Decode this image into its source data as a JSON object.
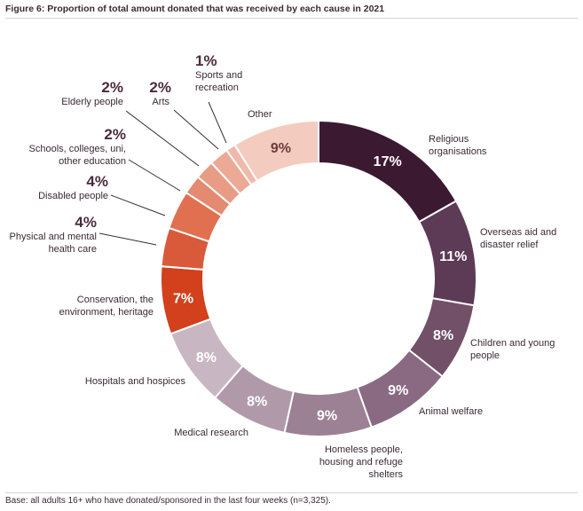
{
  "figure": {
    "title": "Figure 6: Proportion of total amount donated that was received by each cause in 2021",
    "base_note": "Base: all adults 16+ who have donated/sponsored in the last four weeks (n=3,325)."
  },
  "chart_data": {
    "type": "pie",
    "unit": "%",
    "slices": [
      {
        "label": "Religious organisations",
        "value": 17,
        "display": "17%",
        "color": "#3b1a31",
        "text_color": "#ffffff"
      },
      {
        "label": "Overseas aid and disaster relief",
        "value": 11,
        "display": "11%",
        "color": "#5d3a55",
        "text_color": "#ffffff"
      },
      {
        "label": "Children and young people",
        "value": 8,
        "display": "8%",
        "color": "#715068",
        "text_color": "#ffffff"
      },
      {
        "label": "Animal welfare",
        "value": 9,
        "display": "9%",
        "color": "#8a6a82",
        "text_color": "#ffffff"
      },
      {
        "label": "Homeless people, housing and refuge shelters",
        "value": 9,
        "display": "9%",
        "color": "#9c8094",
        "text_color": "#ffffff"
      },
      {
        "label": "Medical research",
        "value": 8,
        "display": "8%",
        "color": "#b09aa9",
        "text_color": "#ffffff"
      },
      {
        "label": "Hospitals and hospices",
        "value": 8,
        "display": "8%",
        "color": "#c8b7c2",
        "text_color": "#ffffff"
      },
      {
        "label": "Conservation, the environment, heritage",
        "value": 7,
        "display": "7%",
        "color": "#d2401c",
        "text_color": "#ffffff"
      },
      {
        "label": "Physical and mental health care",
        "value": 4,
        "display": "4%",
        "color": "#d95a3a",
        "text_color": "#ffffff"
      },
      {
        "label": "Disabled people",
        "value": 4,
        "display": "4%",
        "color": "#e0704f",
        "text_color": "#ffffff"
      },
      {
        "label": "Schools, colleges, uni, other education",
        "value": 2,
        "display": "2%",
        "color": "#e48a70",
        "text_color": "#ffffff"
      },
      {
        "label": "Elderly people",
        "value": 2,
        "display": "2%",
        "color": "#e89c86",
        "text_color": "#ffffff"
      },
      {
        "label": "Arts",
        "value": 2,
        "display": "2%",
        "color": "#eca996",
        "text_color": "#ffffff"
      },
      {
        "label": "Sports and recreation",
        "value": 1,
        "display": "1%",
        "color": "#f0b9a9",
        "text_color": "#ffffff"
      },
      {
        "label": "Other",
        "value": 9,
        "display": "9%",
        "color": "#f3cbbf",
        "text_color": "#6b3b3b"
      }
    ],
    "label_lines": {
      "Religious organisations": [
        "Religious",
        "organisations"
      ],
      "Overseas aid and disaster relief": [
        "Overseas aid and",
        "disaster relief"
      ],
      "Children and young people": [
        "Children and young",
        "people"
      ],
      "Animal welfare": [
        "Animal welfare"
      ],
      "Homeless people, housing and refuge shelters": [
        "Homeless people,",
        "housing and refuge",
        "shelters"
      ],
      "Medical research": [
        "Medical research"
      ],
      "Hospitals and hospices": [
        "Hospitals and hospices"
      ],
      "Conservation, the environment, heritage": [
        "Conservation, the",
        "environment, heritage"
      ],
      "Physical and mental health care": [
        "Physical and mental",
        "health care"
      ],
      "Disabled people": [
        "Disabled people"
      ],
      "Schools, colleges, uni, other education": [
        "Schools, colleges, uni,",
        "other education"
      ],
      "Elderly people": [
        "Elderly people"
      ],
      "Arts": [
        "Arts"
      ],
      "Sports and recreation": [
        "Sports and",
        "recreation"
      ],
      "Other": [
        "Other"
      ]
    }
  }
}
